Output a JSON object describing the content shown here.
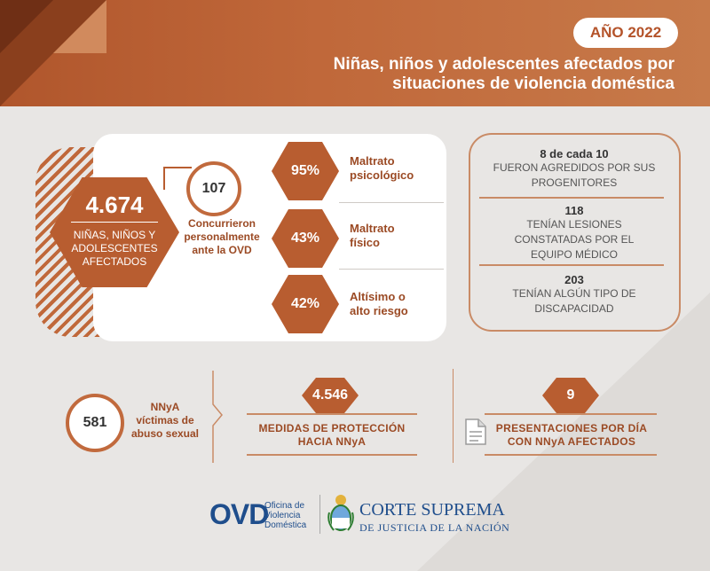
{
  "header": {
    "year": "AÑO 2022",
    "title_line1": "Niñas, niños y adolescentes afectados por",
    "title_line2": "situaciones de violencia doméstica"
  },
  "main_stat": {
    "value": "4.674",
    "label_line1": "NIÑAS, NIÑOS Y",
    "label_line2": "ADOLESCENTES",
    "label_line3": "AFECTADOS"
  },
  "attended": {
    "value": "107",
    "label_line1": "Concurrieron",
    "label_line2": "personalmente",
    "label_line3": "ante la OVD"
  },
  "abuse_types": [
    {
      "percent": "95%",
      "line1": "Maltrato",
      "line2": "psicológico"
    },
    {
      "percent": "43%",
      "line1": "Maltrato",
      "line2": "físico"
    },
    {
      "percent": "42%",
      "line1": "Altísimo o",
      "line2": "alto riesgo"
    }
  ],
  "facts": [
    {
      "value": "8 de cada 10",
      "line1": "FUERON AGREDIDOS POR SUS",
      "line2": "PROGENITORES",
      "line3": ""
    },
    {
      "value": "118",
      "line1": "TENÍAN LESIONES",
      "line2": "CONSTATADAS POR EL",
      "line3": "EQUIPO MÉDICO"
    },
    {
      "value": "203",
      "line1": "TENÍAN ALGÚN TIPO DE",
      "line2": "DISCAPACIDAD",
      "line3": ""
    }
  ],
  "sexual_abuse": {
    "value": "581",
    "label_line1": "NNyA",
    "label_line2": "víctimas de",
    "label_line3": "abuso sexual"
  },
  "measures": {
    "value": "4.546",
    "line1": "MEDIDAS DE PROTECCIÓN",
    "line2": "HACIA NNyA"
  },
  "presentations": {
    "value": "9",
    "line1": "PRESENTACIONES POR DÍA",
    "line2": "CON NNyA AFECTADOS",
    "icon": "document-icon"
  },
  "footer": {
    "ovd": "OVD",
    "ovd_sub1": "Oficina de",
    "ovd_sub2": "Violencia",
    "ovd_sub3": "Doméstica",
    "corte_line1": "CORTE SUPREMA",
    "corte_line2": "DE JUSTICIA DE LA NACIÓN"
  },
  "colors": {
    "accent": "#b85d30",
    "accent_light": "#c98b66",
    "text_accent": "#9b4a24",
    "brand_blue": "#1f4e8c"
  }
}
